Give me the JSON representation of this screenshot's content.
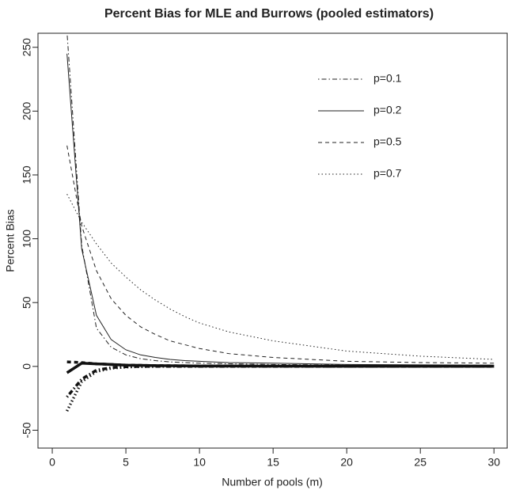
{
  "chart_data": {
    "type": "line",
    "title": "Percent Bias for MLE and Burrows (pooled estimators)",
    "x_label": "Number of pools (m)",
    "y_label": "Percent Bias",
    "x": [
      1,
      2,
      3,
      4,
      5,
      6,
      7,
      8,
      9,
      10,
      12,
      15,
      20,
      25,
      30
    ],
    "series": [
      {
        "name": "p=0.1",
        "color": "#222222",
        "dash": "dotdash",
        "width": 1,
        "values": [
          262,
          95,
          30,
          15,
          9,
          6,
          4.5,
          3.5,
          3,
          2.5,
          2,
          1.5,
          1,
          0.8,
          0.6
        ]
      },
      {
        "name": "p=0.2",
        "color": "#222222",
        "dash": "solid",
        "width": 1,
        "values": [
          245,
          92,
          40,
          21,
          13,
          9,
          7,
          5.5,
          4.5,
          4,
          3,
          2.5,
          1.5,
          1.2,
          1
        ]
      },
      {
        "name": "p=0.5",
        "color": "#222222",
        "dash": "dashed",
        "width": 1,
        "values": [
          173,
          110,
          75,
          53,
          40,
          31,
          25,
          20,
          17,
          14,
          10,
          7,
          4,
          3,
          2.5
        ]
      },
      {
        "name": "p=0.7",
        "color": "#222222",
        "dash": "dotted",
        "width": 1,
        "values": [
          135,
          113,
          96,
          81,
          70,
          60,
          52,
          45,
          39,
          34,
          27,
          20,
          12,
          8,
          5.5
        ]
      },
      {
        "color": "#111111",
        "dash": "dotted",
        "width": 3.5,
        "values": [
          -35,
          -12,
          -4,
          -1.5,
          -0.5,
          -0.2,
          0,
          0,
          0,
          0,
          0,
          0,
          0,
          0,
          0
        ]
      },
      {
        "color": "#111111",
        "dash": "dotdash",
        "width": 3.5,
        "values": [
          -24,
          -10,
          -3,
          -1,
          -0.3,
          0,
          0,
          0,
          0,
          0,
          0,
          0,
          0,
          0,
          0
        ]
      },
      {
        "color": "#111111",
        "dash": "dashed",
        "width": 3.5,
        "values": [
          3.5,
          3,
          2,
          1.5,
          1,
          0.8,
          0.6,
          0.5,
          0.4,
          0.3,
          0.3,
          0.2,
          0.1,
          0.1,
          0.1
        ]
      },
      {
        "color": "#111111",
        "dash": "solid",
        "width": 3.5,
        "values": [
          -5,
          2.5,
          2,
          1.5,
          1,
          0.8,
          0.6,
          0.5,
          0.4,
          0.3,
          0.3,
          0.2,
          0.1,
          0.1,
          0.1
        ]
      }
    ],
    "xlim": [
      -0.97,
      30.9
    ],
    "xticks": [
      0,
      5,
      10,
      15,
      20,
      25,
      30
    ],
    "ylim": [
      -64,
      261
    ],
    "yticks": [
      -50,
      0,
      50,
      100,
      150,
      200,
      250
    ],
    "legend": "top-right",
    "grid": false
  }
}
